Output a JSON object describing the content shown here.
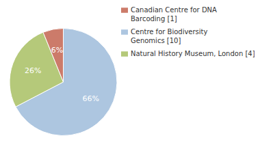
{
  "chart_data": {
    "type": "pie",
    "categories": [
      "Centre for Biodiversity\nGenomics [10]",
      "Natural History Museum, London [4]",
      "Canadian Centre for DNA\nBarcoding [1]"
    ],
    "values": [
      66,
      26,
      6
    ],
    "value_labels": [
      "66%",
      "26%",
      "6%"
    ],
    "colors": [
      "#adc6e0",
      "#b5c97a",
      "#cc7b6a"
    ],
    "data_labels": true,
    "legend": "right"
  }
}
